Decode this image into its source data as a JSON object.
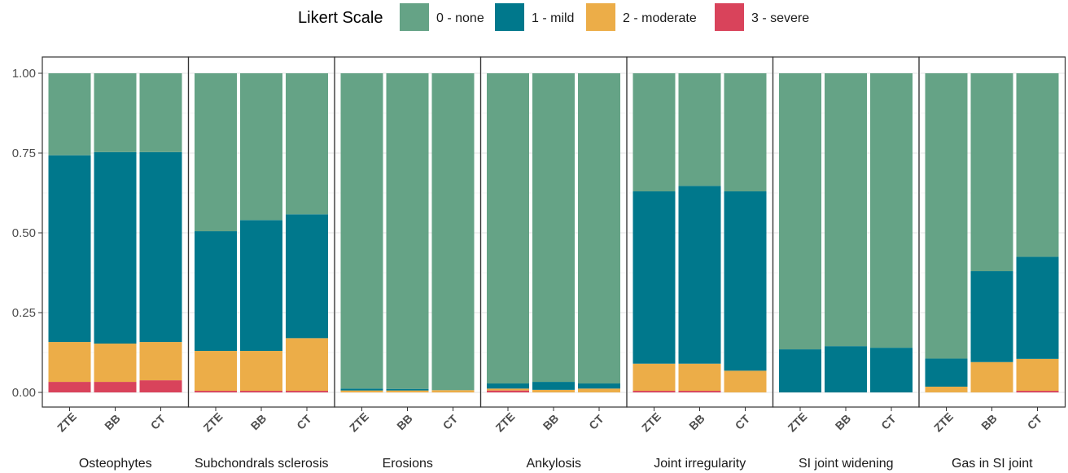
{
  "chart_data": {
    "type": "bar",
    "stacked": true,
    "legend": {
      "title": "Likert Scale",
      "position": "top",
      "entries": [
        "0 - none",
        "1 - mild",
        "2 - moderate",
        "3 - severe"
      ]
    },
    "colors": {
      "0 - none": "#65a386",
      "1 - mild": "#00788c",
      "2 - moderate": "#ecad48",
      "3 - severe": "#d9435b"
    },
    "ylim": [
      0,
      1.05
    ],
    "yticks": [
      "0.00",
      "0.25",
      "0.50",
      "0.75",
      "1.00"
    ],
    "grid": true,
    "categories": [
      "ZTE",
      "BB",
      "CT"
    ],
    "facets": [
      {
        "name": "Osteophytes",
        "series": [
          {
            "name": "3 - severe",
            "values": [
              0.033,
              0.033,
              0.038
            ]
          },
          {
            "name": "2 - moderate",
            "values": [
              0.125,
              0.12,
              0.12
            ]
          },
          {
            "name": "1 - mild",
            "values": [
              0.585,
              0.6,
              0.595
            ]
          },
          {
            "name": "0 - none",
            "values": [
              0.257,
              0.247,
              0.247
            ]
          }
        ]
      },
      {
        "name": "Subchondrals sclerosis",
        "series": [
          {
            "name": "3 - severe",
            "values": [
              0.005,
              0.005,
              0.005
            ]
          },
          {
            "name": "2 - moderate",
            "values": [
              0.125,
              0.125,
              0.165
            ]
          },
          {
            "name": "1 - mild",
            "values": [
              0.375,
              0.41,
              0.388
            ]
          },
          {
            "name": "0 - none",
            "values": [
              0.495,
              0.46,
              0.442
            ]
          }
        ]
      },
      {
        "name": "Erosions",
        "series": [
          {
            "name": "3 - severe",
            "values": [
              0.0,
              0.0,
              0.0
            ]
          },
          {
            "name": "2 - moderate",
            "values": [
              0.006,
              0.006,
              0.007
            ]
          },
          {
            "name": "1 - mild",
            "values": [
              0.006,
              0.005,
              0.0
            ]
          },
          {
            "name": "0 - none",
            "values": [
              0.988,
              0.989,
              0.993
            ]
          }
        ]
      },
      {
        "name": "Ankylosis",
        "series": [
          {
            "name": "3 - severe",
            "values": [
              0.006,
              0.0,
              0.0
            ]
          },
          {
            "name": "2 - moderate",
            "values": [
              0.006,
              0.008,
              0.012
            ]
          },
          {
            "name": "1 - mild",
            "values": [
              0.016,
              0.025,
              0.016
            ]
          },
          {
            "name": "0 - none",
            "values": [
              0.972,
              0.967,
              0.972
            ]
          }
        ]
      },
      {
        "name": "Joint irregularity",
        "series": [
          {
            "name": "3 - severe",
            "values": [
              0.005,
              0.005,
              0.0
            ]
          },
          {
            "name": "2 - moderate",
            "values": [
              0.085,
              0.085,
              0.068
            ]
          },
          {
            "name": "1 - mild",
            "values": [
              0.54,
              0.557,
              0.562
            ]
          },
          {
            "name": "0 - none",
            "values": [
              0.37,
              0.353,
              0.37
            ]
          }
        ]
      },
      {
        "name": "SI joint widening",
        "series": [
          {
            "name": "3 - severe",
            "values": [
              0.0,
              0.0,
              0.0
            ]
          },
          {
            "name": "2 - moderate",
            "values": [
              0.0,
              0.0,
              0.0
            ]
          },
          {
            "name": "1 - mild",
            "values": [
              0.135,
              0.145,
              0.14
            ]
          },
          {
            "name": "0 - none",
            "values": [
              0.865,
              0.855,
              0.86
            ]
          }
        ]
      },
      {
        "name": "Gas in SI joint",
        "series": [
          {
            "name": "3 - severe",
            "values": [
              0.0,
              0.0,
              0.005
            ]
          },
          {
            "name": "2 - moderate",
            "values": [
              0.018,
              0.095,
              0.1
            ]
          },
          {
            "name": "1 - mild",
            "values": [
              0.088,
              0.285,
              0.32
            ]
          },
          {
            "name": "0 - none",
            "values": [
              0.894,
              0.62,
              0.575
            ]
          }
        ]
      }
    ]
  }
}
